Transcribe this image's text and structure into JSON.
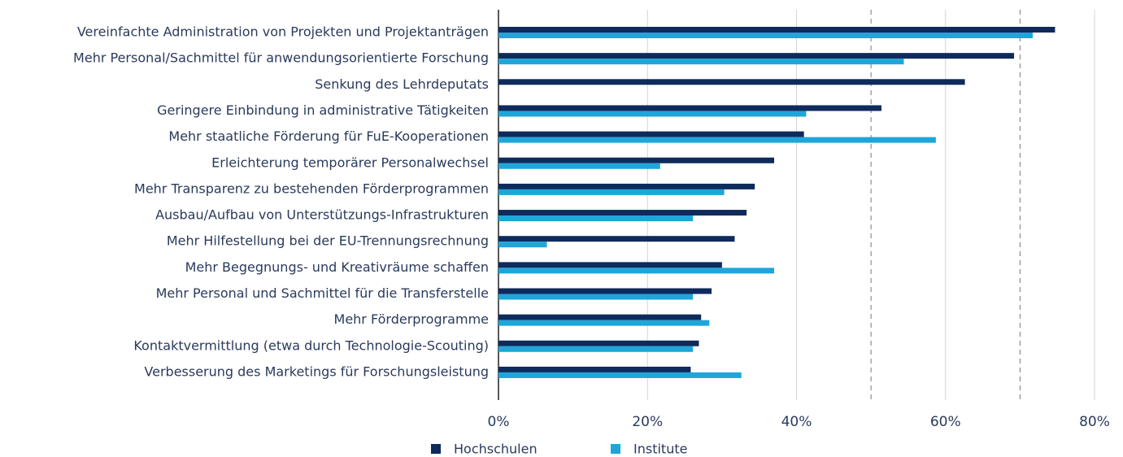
{
  "chart_data": {
    "type": "hbar",
    "categories": [
      "Vereinfachte Administration von Projekten und Projektanträgen",
      "Mehr Personal/Sachmittel für anwendungsorientierte Forschung",
      "Senkung des Lehrdeputats",
      "Geringere Einbindung in administrative Tätigkeiten",
      "Mehr staatliche Förderung für FuE-Kooperationen",
      "Erleichterung temporärer Personalwechsel",
      "Mehr Transparenz zu bestehenden Förderprogrammen",
      "Ausbau/Aufbau von Unterstützungs-Infrastrukturen",
      "Mehr Hilfestellung bei der EU-Trennungsrechnung",
      "Mehr Begegnungs- und Kreativräume schaffen",
      "Mehr Personal und Sachmittel für die Transferstelle",
      "Mehr Förderprogramme",
      "Kontaktvermittlung (etwa durch Technologie-Scouting)",
      "Verbesserung des Marketings für Forschungsleistung"
    ],
    "series": [
      {
        "name": "Hochschulen",
        "color": "#0f2a5c",
        "values": [
          74.7,
          69.2,
          62.6,
          51.4,
          41,
          37,
          34.4,
          33.3,
          31.7,
          30,
          28.6,
          27.2,
          26.9,
          25.8
        ]
      },
      {
        "name": "Institute",
        "color": "#1ea6d9",
        "values": [
          71.7,
          54.4,
          null,
          41.3,
          58.7,
          21.7,
          30.3,
          26.1,
          6.5,
          37,
          26.1,
          28.3,
          26.1,
          32.6
        ]
      }
    ],
    "xlim": [
      0,
      80
    ],
    "xticks": [
      {
        "value": 0,
        "label": "0%"
      },
      {
        "value": 20,
        "label": "20%"
      },
      {
        "value": 40,
        "label": "40%"
      },
      {
        "value": 60,
        "label": "60%"
      },
      {
        "value": 80,
        "label": "80%"
      }
    ],
    "dashed_lines": [
      50,
      70
    ],
    "grid": true,
    "legend": "bottom"
  }
}
